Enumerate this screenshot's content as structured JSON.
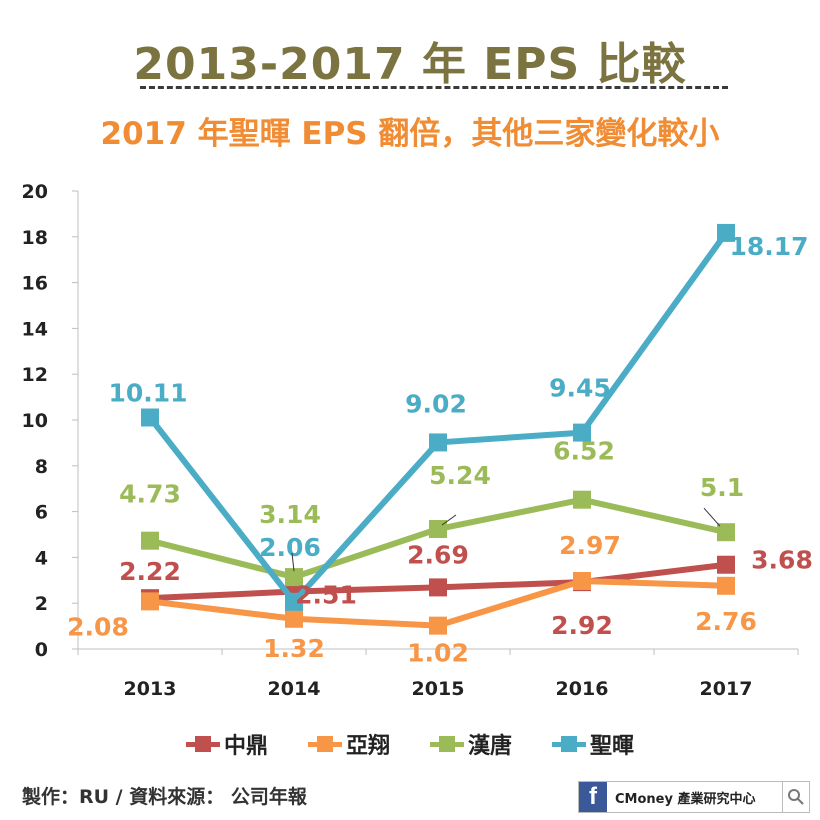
{
  "header": {
    "title": "2013-2017 年 EPS 比較",
    "subtitle": "2017 年聖暉 EPS 翻倍，其他三家變化較小"
  },
  "chart_data": {
    "type": "line",
    "categories": [
      "2013",
      "2014",
      "2015",
      "2016",
      "2017"
    ],
    "ylim": [
      0,
      20
    ],
    "yticks": [
      0,
      2,
      4,
      6,
      8,
      10,
      12,
      14,
      16,
      18,
      20
    ],
    "grid": false,
    "legend_position": "bottom",
    "series": [
      {
        "name": "中鼎",
        "color": "#c0504d",
        "values": [
          2.22,
          2.51,
          2.69,
          2.92,
          3.68
        ],
        "labels": [
          "2.22",
          "2.51",
          "2.69",
          "2.92",
          "3.68"
        ]
      },
      {
        "name": "亞翔",
        "color": "#f79646",
        "values": [
          2.08,
          1.32,
          1.02,
          2.97,
          2.76
        ],
        "labels": [
          "2.08",
          "1.32",
          "1.02",
          "2.97",
          "2.76"
        ]
      },
      {
        "name": "漢唐",
        "color": "#9bbb59",
        "values": [
          4.73,
          3.14,
          5.24,
          6.52,
          5.1
        ],
        "labels": [
          "4.73",
          "3.14",
          "5.24",
          "6.52",
          "5.1"
        ]
      },
      {
        "name": "聖暉",
        "color": "#4bacc6",
        "values": [
          10.11,
          2.06,
          9.02,
          9.45,
          18.17
        ],
        "labels": [
          "10.11",
          "2.06",
          "9.02",
          "9.45",
          "18.17"
        ]
      }
    ]
  },
  "footer": {
    "credit": "製作：RU  / 資料來源： 公司年報",
    "brand_icon": "facebook-icon",
    "brand_text": "CMoney 產業研究中心",
    "search_icon": "search-icon"
  }
}
